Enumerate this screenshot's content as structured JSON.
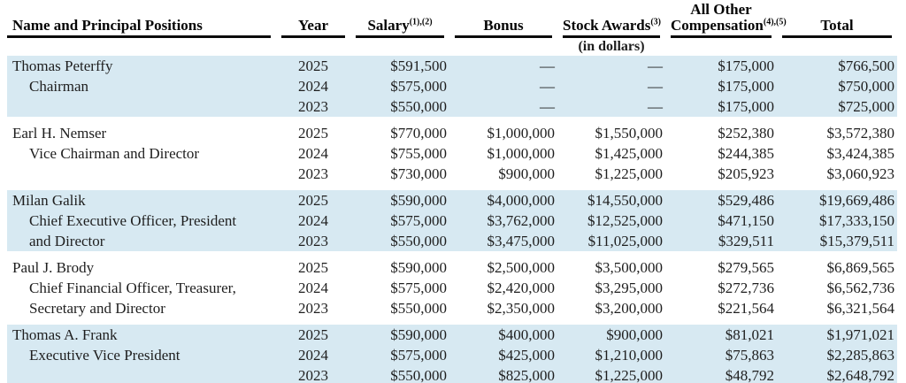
{
  "page": {
    "background": "#ffffff",
    "shaded_row_color": "#d7e9f2",
    "rule_color": "#0a0a0a",
    "text_color": "#1e1e1e"
  },
  "table": {
    "columns": [
      {
        "label": "Name and Principal Positions",
        "sup": ""
      },
      {
        "label": "Year",
        "sup": ""
      },
      {
        "label": "Salary",
        "sup": "(1),(2)"
      },
      {
        "label": "Bonus",
        "sup": ""
      },
      {
        "label": "Stock Awards",
        "sup": "(3)"
      },
      {
        "label_line1": "All Other",
        "label": "Compensation",
        "sup": "(4),(5)"
      },
      {
        "label": "Total",
        "sup": ""
      }
    ],
    "units_note": "(in dollars)",
    "groups": [
      {
        "shaded": true,
        "rows": [
          {
            "name": "Thomas Peterffy",
            "indent": false,
            "year": "2025",
            "salary": "$591,500",
            "bonus": "—",
            "stock": "—",
            "other": "$175,000",
            "total": "$766,500"
          },
          {
            "name": "Chairman",
            "indent": true,
            "year": "2024",
            "salary": "$575,000",
            "bonus": "—",
            "stock": "—",
            "other": "$175,000",
            "total": "$750,000"
          },
          {
            "name": "",
            "indent": false,
            "year": "2023",
            "salary": "$550,000",
            "bonus": "—",
            "stock": "—",
            "other": "$175,000",
            "total": "$725,000"
          }
        ]
      },
      {
        "shaded": false,
        "rows": [
          {
            "name": "Earl H. Nemser",
            "indent": false,
            "year": "2025",
            "salary": "$770,000",
            "bonus": "$1,000,000",
            "stock": "$1,550,000",
            "other": "$252,380",
            "total": "$3,572,380"
          },
          {
            "name": "Vice Chairman and Director",
            "indent": true,
            "year": "2024",
            "salary": "$755,000",
            "bonus": "$1,000,000",
            "stock": "$1,425,000",
            "other": "$244,385",
            "total": "$3,424,385"
          },
          {
            "name": "",
            "indent": false,
            "year": "2023",
            "salary": "$730,000",
            "bonus": "$900,000",
            "stock": "$1,225,000",
            "other": "$205,923",
            "total": "$3,060,923"
          }
        ]
      },
      {
        "shaded": true,
        "rows": [
          {
            "name": "Milan Galik",
            "indent": false,
            "year": "2025",
            "salary": "$590,000",
            "bonus": "$4,000,000",
            "stock": "$14,550,000",
            "other": "$529,486",
            "total": "$19,669,486"
          },
          {
            "name": "Chief Executive Officer, President",
            "indent": true,
            "year": "2024",
            "salary": "$575,000",
            "bonus": "$3,762,000",
            "stock": "$12,525,000",
            "other": "$471,150",
            "total": "$17,333,150"
          },
          {
            "name": "and Director",
            "indent": true,
            "year": "2023",
            "salary": "$550,000",
            "bonus": "$3,475,000",
            "stock": "$11,025,000",
            "other": "$329,511",
            "total": "$15,379,511"
          }
        ]
      },
      {
        "shaded": false,
        "rows": [
          {
            "name": "Paul J. Brody",
            "indent": false,
            "year": "2025",
            "salary": "$590,000",
            "bonus": "$2,500,000",
            "stock": "$3,500,000",
            "other": "$279,565",
            "total": "$6,869,565"
          },
          {
            "name": "Chief Financial Officer, Treasurer,",
            "indent": true,
            "year": "2024",
            "salary": "$575,000",
            "bonus": "$2,420,000",
            "stock": "$3,295,000",
            "other": "$272,736",
            "total": "$6,562,736"
          },
          {
            "name": "Secretary and Director",
            "indent": true,
            "year": "2023",
            "salary": "$550,000",
            "bonus": "$2,350,000",
            "stock": "$3,200,000",
            "other": "$221,564",
            "total": "$6,321,564"
          }
        ]
      },
      {
        "shaded": true,
        "rows": [
          {
            "name": "Thomas A. Frank",
            "indent": false,
            "year": "2025",
            "salary": "$590,000",
            "bonus": "$400,000",
            "stock": "$900,000",
            "other": "$81,021",
            "total": "$1,971,021"
          },
          {
            "name": "Executive Vice President",
            "indent": true,
            "year": "2024",
            "salary": "$575,000",
            "bonus": "$425,000",
            "stock": "$1,210,000",
            "other": "$75,863",
            "total": "$2,285,863"
          },
          {
            "name": "",
            "indent": false,
            "year": "2023",
            "salary": "$550,000",
            "bonus": "$825,000",
            "stock": "$1,225,000",
            "other": "$48,792",
            "total": "$2,648,792"
          }
        ]
      }
    ]
  }
}
